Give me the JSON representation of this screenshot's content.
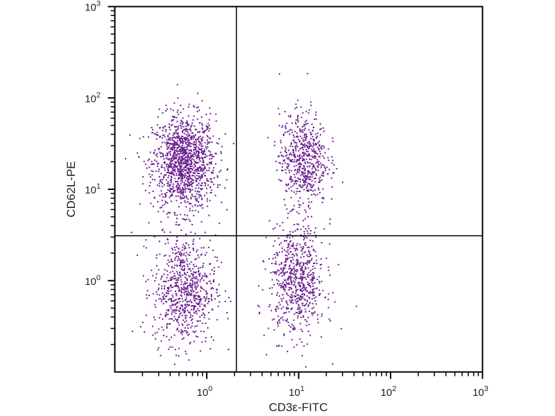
{
  "chart_data": {
    "type": "scatter",
    "title": "",
    "xlabel": "CD3ε-FITC",
    "ylabel": "CD62L-PE",
    "x_scale": "log",
    "y_scale": "log",
    "xlim": [
      0.1,
      1000
    ],
    "ylim": [
      0.1,
      1000
    ],
    "x_ticks": [
      {
        "base": "10",
        "exp": "0",
        "value": 1
      },
      {
        "base": "10",
        "exp": "1",
        "value": 10
      },
      {
        "base": "10",
        "exp": "2",
        "value": 100
      },
      {
        "base": "10",
        "exp": "3",
        "value": 1000
      }
    ],
    "y_ticks": [
      {
        "base": "10",
        "exp": "0",
        "value": 1
      },
      {
        "base": "10",
        "exp": "1",
        "value": 10
      },
      {
        "base": "10",
        "exp": "2",
        "value": 100
      },
      {
        "base": "10",
        "exp": "3",
        "value": 1000
      }
    ],
    "grid": false,
    "quadrant_gates": {
      "x": 2.1,
      "y": 3.1
    },
    "point_color": "#6b1f8f",
    "populations": [
      {
        "quadrant": "upper-left",
        "center": [
          0.56,
          20
        ],
        "spread_decades": [
          0.17,
          0.26
        ],
        "approx_count": 1300
      },
      {
        "quadrant": "lower-left",
        "center": [
          0.56,
          0.8
        ],
        "spread_decades": [
          0.17,
          0.3
        ],
        "approx_count": 750
      },
      {
        "quadrant": "upper-right",
        "center": [
          11,
          22
        ],
        "spread_decades": [
          0.13,
          0.26
        ],
        "approx_count": 600
      },
      {
        "quadrant": "lower-right",
        "center": [
          9.5,
          1.0
        ],
        "spread_decades": [
          0.15,
          0.3
        ],
        "approx_count": 700
      }
    ]
  }
}
